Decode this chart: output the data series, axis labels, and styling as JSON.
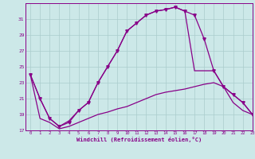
{
  "xlabel": "Windchill (Refroidissement éolien,°C)",
  "background_color": "#cce8e8",
  "grid_color": "#aacccc",
  "line_color": "#880088",
  "x_hours": [
    0,
    1,
    2,
    3,
    4,
    5,
    6,
    7,
    8,
    9,
    10,
    11,
    12,
    13,
    14,
    15,
    16,
    17,
    18,
    19,
    20,
    21,
    22,
    23
  ],
  "curve1": [
    24.0,
    21.0,
    18.5,
    17.5,
    18.0,
    19.5,
    20.5,
    23.0,
    25.0,
    27.0,
    29.5,
    30.5,
    31.5,
    32.0,
    32.2,
    32.5,
    32.0,
    31.5,
    28.5,
    24.5,
    22.5,
    21.5,
    20.5,
    19.0
  ],
  "curve2": [
    24.0,
    21.0,
    18.5,
    17.5,
    18.2,
    19.5,
    20.5,
    23.0,
    25.0,
    27.0,
    29.5,
    30.5,
    31.5,
    32.0,
    32.2,
    32.5,
    32.0,
    24.5,
    24.5,
    24.5,
    22.5,
    21.5,
    20.5,
    19.0
  ],
  "curve3": [
    24.0,
    18.5,
    18.0,
    17.2,
    17.5,
    18.0,
    18.5,
    19.0,
    19.3,
    19.7,
    20.0,
    20.5,
    21.0,
    21.5,
    21.8,
    22.0,
    22.2,
    22.5,
    22.8,
    23.0,
    22.5,
    20.5,
    19.5,
    19.0
  ],
  "ylim": [
    17,
    33
  ],
  "yticks": [
    17,
    19,
    21,
    23,
    25,
    27,
    29,
    31
  ],
  "xlim": [
    -0.5,
    23
  ],
  "xticks": [
    0,
    1,
    2,
    3,
    4,
    5,
    6,
    7,
    8,
    9,
    10,
    11,
    12,
    13,
    14,
    15,
    16,
    17,
    18,
    19,
    20,
    21,
    22,
    23
  ]
}
